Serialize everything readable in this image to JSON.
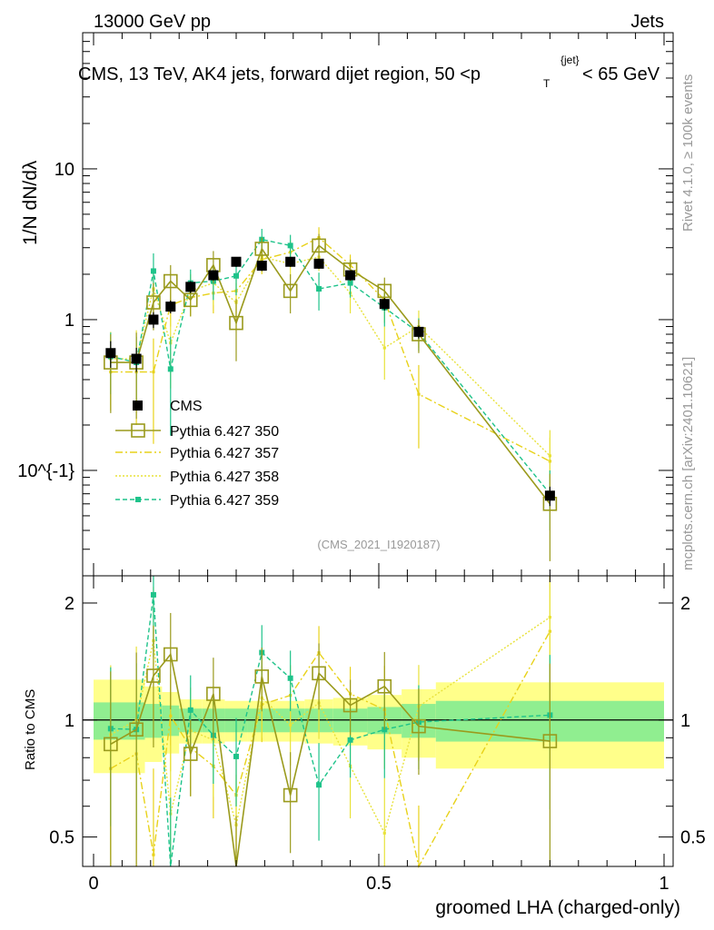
{
  "header": {
    "energy_label": "13000 GeV pp",
    "category_label": "Jets",
    "analysis_title": "CMS, 13 TeV, AK4 jets, forward dijet region, 50 <p",
    "analysis_title_tail": "< 65 GeV",
    "title_sub_T": "T",
    "title_sup_jet": "{jet}",
    "rivet_label": "Rivet 4.1.0, ≥ 100k events",
    "mcplots_label": "mcplots.cern.ch [arXiv:2401.10621]",
    "analysis_id": "(CMS_2021_I1920187)"
  },
  "ylabel_main": "1/N dN/dλ",
  "ylabel_ratio": "Ratio to CMS",
  "xlabel": "groomed LHA (charged-only)",
  "legend": [
    "CMS",
    "Pythia 6.427 350",
    "Pythia 6.427 357",
    "Pythia 6.427 358",
    "Pythia 6.427 359"
  ],
  "colors": {
    "data": "#000000",
    "p350": "#9a9a1c",
    "p357": "#e8d21a",
    "p358": "#e8e23a",
    "p359": "#1ec38a",
    "band_inner": "#90ee90",
    "band_outer": "#ffff8a"
  },
  "chart_data": {
    "type": "scatter",
    "xlim": [
      0,
      1
    ],
    "main_ylim": [
      0.02,
      80
    ],
    "main_yscale": "log",
    "main_yticks": [
      "1",
      "10",
      "10^{-1}"
    ],
    "ratio_ylim": [
      0.42,
      2.35
    ],
    "ratio_yticks": [
      "0.5",
      "1",
      "2"
    ],
    "xticks": [
      "0",
      "0.5",
      "1"
    ],
    "x": [
      0.03,
      0.075,
      0.105,
      0.135,
      0.17,
      0.21,
      0.25,
      0.295,
      0.345,
      0.395,
      0.45,
      0.51,
      0.57,
      0.8
    ],
    "cms": {
      "values": [
        0.6,
        0.55,
        1.0,
        1.22,
        1.65,
        1.97,
        2.42,
        2.28,
        2.42,
        2.35,
        1.97,
        1.27,
        0.83,
        0.068
      ],
      "errors": [
        0.12,
        0.1,
        0.12,
        0.12,
        0.15,
        0.15,
        0.18,
        0.18,
        0.18,
        0.18,
        0.15,
        0.12,
        0.08,
        0.01
      ]
    },
    "series": [
      {
        "name": "Pythia 6.427 350",
        "key": "p350",
        "values": [
          0.52,
          0.52,
          1.3,
          1.8,
          1.35,
          2.3,
          0.95,
          2.95,
          1.55,
          3.1,
          2.15,
          1.55,
          0.8,
          0.06
        ],
        "errors": [
          0.28,
          0.3,
          0.45,
          0.5,
          0.3,
          0.55,
          0.42,
          0.55,
          0.45,
          0.6,
          0.35,
          0.35,
          0.2,
          0.035
        ]
      },
      {
        "name": "Pythia 6.427 357",
        "key": "p357",
        "values": [
          0.45,
          0.45,
          0.45,
          1.25,
          1.4,
          1.5,
          1.55,
          2.5,
          2.8,
          3.5,
          2.3,
          1.35,
          0.32,
          0.115
        ],
        "errors": [
          0.2,
          0.25,
          0.3,
          0.35,
          0.35,
          0.4,
          0.45,
          0.5,
          0.55,
          0.6,
          0.4,
          0.4,
          0.18,
          0.05
        ]
      },
      {
        "name": "Pythia 6.427 358",
        "key": "p358",
        "values": [
          0.55,
          0.55,
          1.6,
          0.7,
          1.55,
          1.75,
          1.3,
          2.6,
          2.35,
          2.6,
          1.5,
          0.65,
          0.9,
          0.125
        ],
        "errors": [
          0.28,
          0.3,
          0.6,
          0.35,
          0.45,
          0.5,
          0.45,
          0.55,
          0.5,
          0.5,
          0.4,
          0.25,
          0.25,
          0.06
        ]
      },
      {
        "name": "Pythia 6.427 359",
        "key": "p359",
        "values": [
          0.57,
          0.52,
          2.1,
          0.47,
          1.75,
          1.8,
          1.95,
          3.4,
          3.1,
          1.6,
          1.75,
          1.2,
          0.82,
          0.07
        ],
        "errors": [
          0.25,
          0.25,
          0.65,
          0.3,
          0.4,
          0.45,
          0.5,
          0.6,
          0.55,
          0.45,
          0.35,
          0.3,
          0.2,
          0.03
        ]
      }
    ],
    "ratio_band": {
      "edges": [
        0.0,
        0.09,
        0.12,
        0.15,
        0.19,
        0.23,
        0.27,
        0.32,
        0.37,
        0.42,
        0.48,
        0.54,
        0.6,
        1.0
      ],
      "inner": [
        0.11,
        0.1,
        0.09,
        0.07,
        0.07,
        0.07,
        0.07,
        0.07,
        0.07,
        0.07,
        0.08,
        0.1,
        0.12
      ],
      "outer": [
        0.27,
        0.22,
        0.18,
        0.13,
        0.13,
        0.12,
        0.12,
        0.12,
        0.13,
        0.14,
        0.16,
        0.2,
        0.25
      ]
    }
  }
}
